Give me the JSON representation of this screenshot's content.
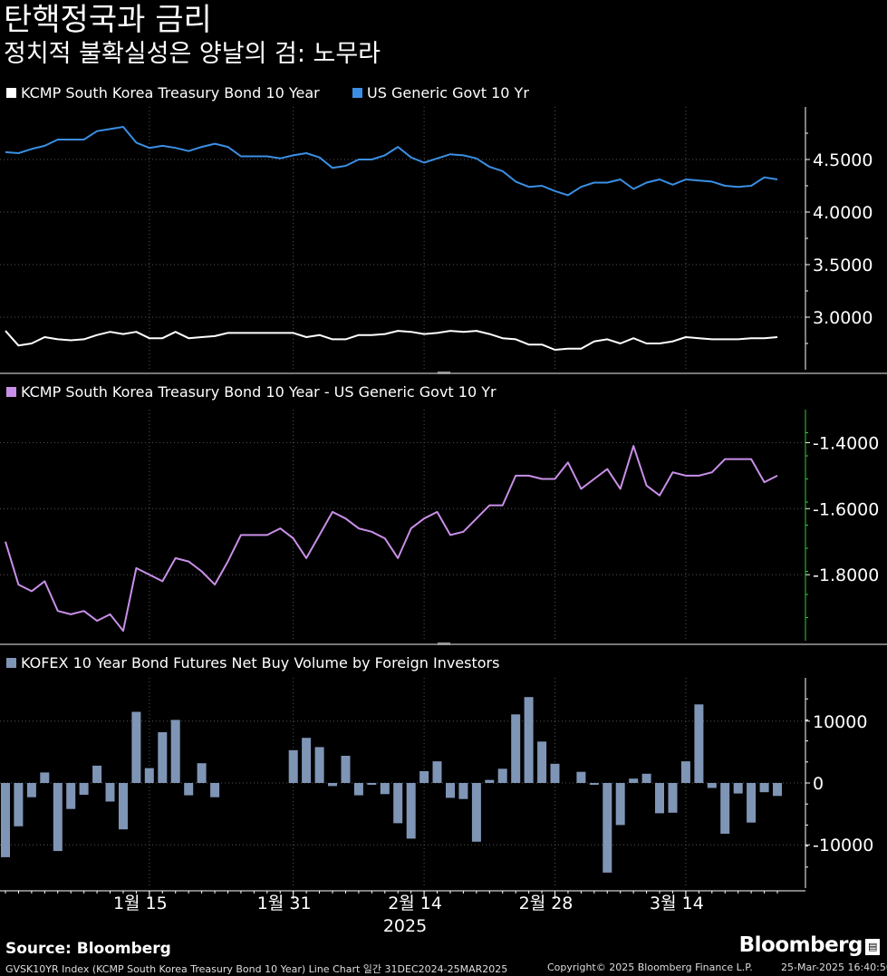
{
  "title": "탄핵정국과 금리",
  "subtitle": "정치적 불확실성은 양날의 검: 노무라",
  "source": "Source: Bloomberg",
  "brand": "Bloomberg",
  "footer": {
    "left": "GVSK10YR Index (KCMP South Korea Treasury Bond 10 Year) Line Chart 일간 31DEC2024-25MAR2025",
    "middle": "Copyright© 2025 Bloomberg Finance L.P.",
    "right": "25-Mar-2025 16:40:50"
  },
  "colors": {
    "korea": "#ffffff",
    "us": "#3a8fe4",
    "spread": "#c98fe8",
    "futures": "#7f95b6",
    "spread_axis": "#33cc33"
  },
  "x_axis": {
    "ticks": [
      "1월 15",
      "1월 31",
      "2월 14",
      "2월 28",
      "3월 14"
    ],
    "year": "2025"
  },
  "chart_data": [
    {
      "type": "line",
      "legend_position": "top-left",
      "series": [
        {
          "name": "KCMP South Korea Treasury Bond 10 Year",
          "values": [
            2.87,
            2.73,
            2.75,
            2.81,
            2.79,
            2.78,
            2.79,
            2.83,
            2.86,
            2.84,
            2.86,
            2.8,
            2.8,
            2.86,
            2.8,
            2.81,
            2.82,
            2.85,
            2.85,
            2.85,
            2.85,
            2.85,
            2.85,
            2.81,
            2.83,
            2.79,
            2.79,
            2.83,
            2.83,
            2.84,
            2.87,
            2.86,
            2.84,
            2.85,
            2.87,
            2.86,
            2.87,
            2.84,
            2.8,
            2.79,
            2.74,
            2.74,
            2.69,
            2.7,
            2.7,
            2.77,
            2.79,
            2.75,
            2.8,
            2.75,
            2.75,
            2.77,
            2.81,
            2.8,
            2.79,
            2.79,
            2.79,
            2.8,
            2.8,
            2.81
          ]
        },
        {
          "name": "US Generic Govt 10 Yr",
          "values": [
            4.57,
            4.56,
            4.6,
            4.63,
            4.69,
            4.69,
            4.69,
            4.77,
            4.79,
            4.81,
            4.66,
            4.61,
            4.63,
            4.61,
            4.58,
            4.62,
            4.65,
            4.62,
            4.53,
            4.53,
            4.53,
            4.51,
            4.54,
            4.56,
            4.52,
            4.42,
            4.44,
            4.5,
            4.5,
            4.54,
            4.62,
            4.52,
            4.47,
            4.51,
            4.55,
            4.54,
            4.51,
            4.43,
            4.39,
            4.29,
            4.24,
            4.25,
            4.2,
            4.16,
            4.24,
            4.28,
            4.28,
            4.31,
            4.22,
            4.28,
            4.31,
            4.26,
            4.31,
            4.3,
            4.29,
            4.25,
            4.24,
            4.25,
            4.33,
            4.31
          ]
        }
      ],
      "yticks": [
        3.0,
        3.5,
        4.0,
        4.5
      ],
      "ytick_labels": [
        "3.0000",
        "3.5000",
        "4.0000",
        "4.5000"
      ],
      "ylim": [
        2.5,
        5.0
      ]
    },
    {
      "type": "line",
      "legend_position": "top-left",
      "series": [
        {
          "name": "KCMP South Korea Treasury Bond 10 Year - US Generic Govt 10 Yr",
          "values": [
            -1.7,
            -1.83,
            -1.85,
            -1.82,
            -1.91,
            -1.92,
            -1.91,
            -1.94,
            -1.92,
            -1.97,
            -1.78,
            -1.8,
            -1.82,
            -1.75,
            -1.76,
            -1.79,
            -1.83,
            -1.76,
            -1.68,
            -1.68,
            -1.68,
            -1.66,
            -1.69,
            -1.75,
            -1.68,
            -1.61,
            -1.63,
            -1.66,
            -1.67,
            -1.69,
            -1.75,
            -1.66,
            -1.63,
            -1.61,
            -1.68,
            -1.67,
            -1.63,
            -1.59,
            -1.59,
            -1.5,
            -1.5,
            -1.51,
            -1.51,
            -1.46,
            -1.54,
            -1.51,
            -1.48,
            -1.54,
            -1.41,
            -1.53,
            -1.56,
            -1.49,
            -1.5,
            -1.5,
            -1.49,
            -1.45,
            -1.45,
            -1.45,
            -1.52,
            -1.5
          ]
        }
      ],
      "yticks": [
        -1.8,
        -1.6,
        -1.4
      ],
      "ytick_labels": [
        "-1.8000",
        "-1.6000",
        "-1.4000"
      ],
      "ylim": [
        -2.0,
        -1.3
      ]
    },
    {
      "type": "bar",
      "legend_position": "top-left",
      "series": [
        {
          "name": "KOFEX 10 Year Bond Futures Net Buy Volume by Foreign Investors",
          "values": [
            -12000,
            -7000,
            -2300,
            1700,
            -11000,
            -4200,
            -1900,
            2800,
            -3000,
            -7500,
            11500,
            2400,
            8200,
            10200,
            -2000,
            3200,
            -2300,
            0,
            0,
            0,
            0,
            0,
            5300,
            7300,
            5800,
            -500,
            4400,
            -2000,
            -300,
            -1800,
            -6500,
            -9000,
            1900,
            3500,
            -2400,
            -2600,
            -9500,
            500,
            2300,
            11100,
            13900,
            6700,
            3100,
            0,
            1800,
            -300,
            -14500,
            -6800,
            700,
            1500,
            -4900,
            -4800,
            3500,
            12700,
            -800,
            -8200,
            -1700,
            -6400,
            -1500,
            -2100
          ]
        }
      ],
      "yticks": [
        -10000,
        0,
        10000
      ],
      "ytick_labels": [
        "-10000",
        "0",
        "10000"
      ],
      "ylim": [
        -17000,
        17000
      ]
    }
  ]
}
